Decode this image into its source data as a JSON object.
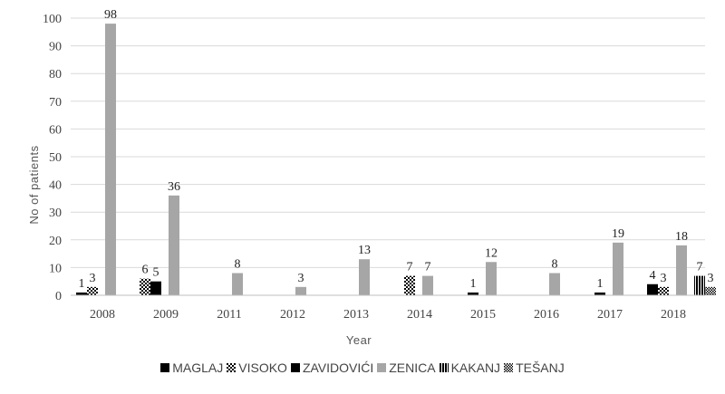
{
  "chart_data": {
    "type": "bar",
    "title": "",
    "xlabel": "Year",
    "ylabel": "No of patients",
    "ylim": [
      0,
      100
    ],
    "yticks": [
      0,
      10,
      20,
      30,
      40,
      50,
      60,
      70,
      80,
      90,
      100
    ],
    "categories": [
      "2008",
      "2009",
      "2011",
      "2012",
      "2013",
      "2014",
      "2015",
      "2016",
      "2017",
      "2018"
    ],
    "legend_position": "bottom",
    "grid": true,
    "series": [
      {
        "name": "MAGLAJ",
        "pattern": "solid-black",
        "color": "#000000",
        "values": [
          1,
          null,
          null,
          null,
          null,
          null,
          1,
          null,
          1,
          4
        ]
      },
      {
        "name": "VISOKO",
        "pattern": "checker",
        "color": "#000000",
        "values": [
          3,
          6,
          null,
          null,
          null,
          7,
          null,
          null,
          null,
          3
        ]
      },
      {
        "name": "ZAVIDOVIĆI",
        "pattern": "solid-black",
        "color": "#000000",
        "values": [
          null,
          5,
          null,
          null,
          null,
          null,
          null,
          null,
          null,
          null
        ]
      },
      {
        "name": "ZENICA",
        "pattern": "solid-gray",
        "color": "#a6a6a6",
        "values": [
          98,
          36,
          8,
          3,
          13,
          7,
          12,
          8,
          19,
          18
        ]
      },
      {
        "name": "KAKANJ",
        "pattern": "vertical-stripes",
        "color": "#000000",
        "values": [
          null,
          null,
          null,
          null,
          null,
          null,
          null,
          null,
          null,
          7
        ]
      },
      {
        "name": "TEŠANJ",
        "pattern": "checker-small",
        "color": "#000000",
        "values": [
          null,
          null,
          null,
          null,
          null,
          null,
          null,
          null,
          null,
          3
        ]
      }
    ]
  }
}
